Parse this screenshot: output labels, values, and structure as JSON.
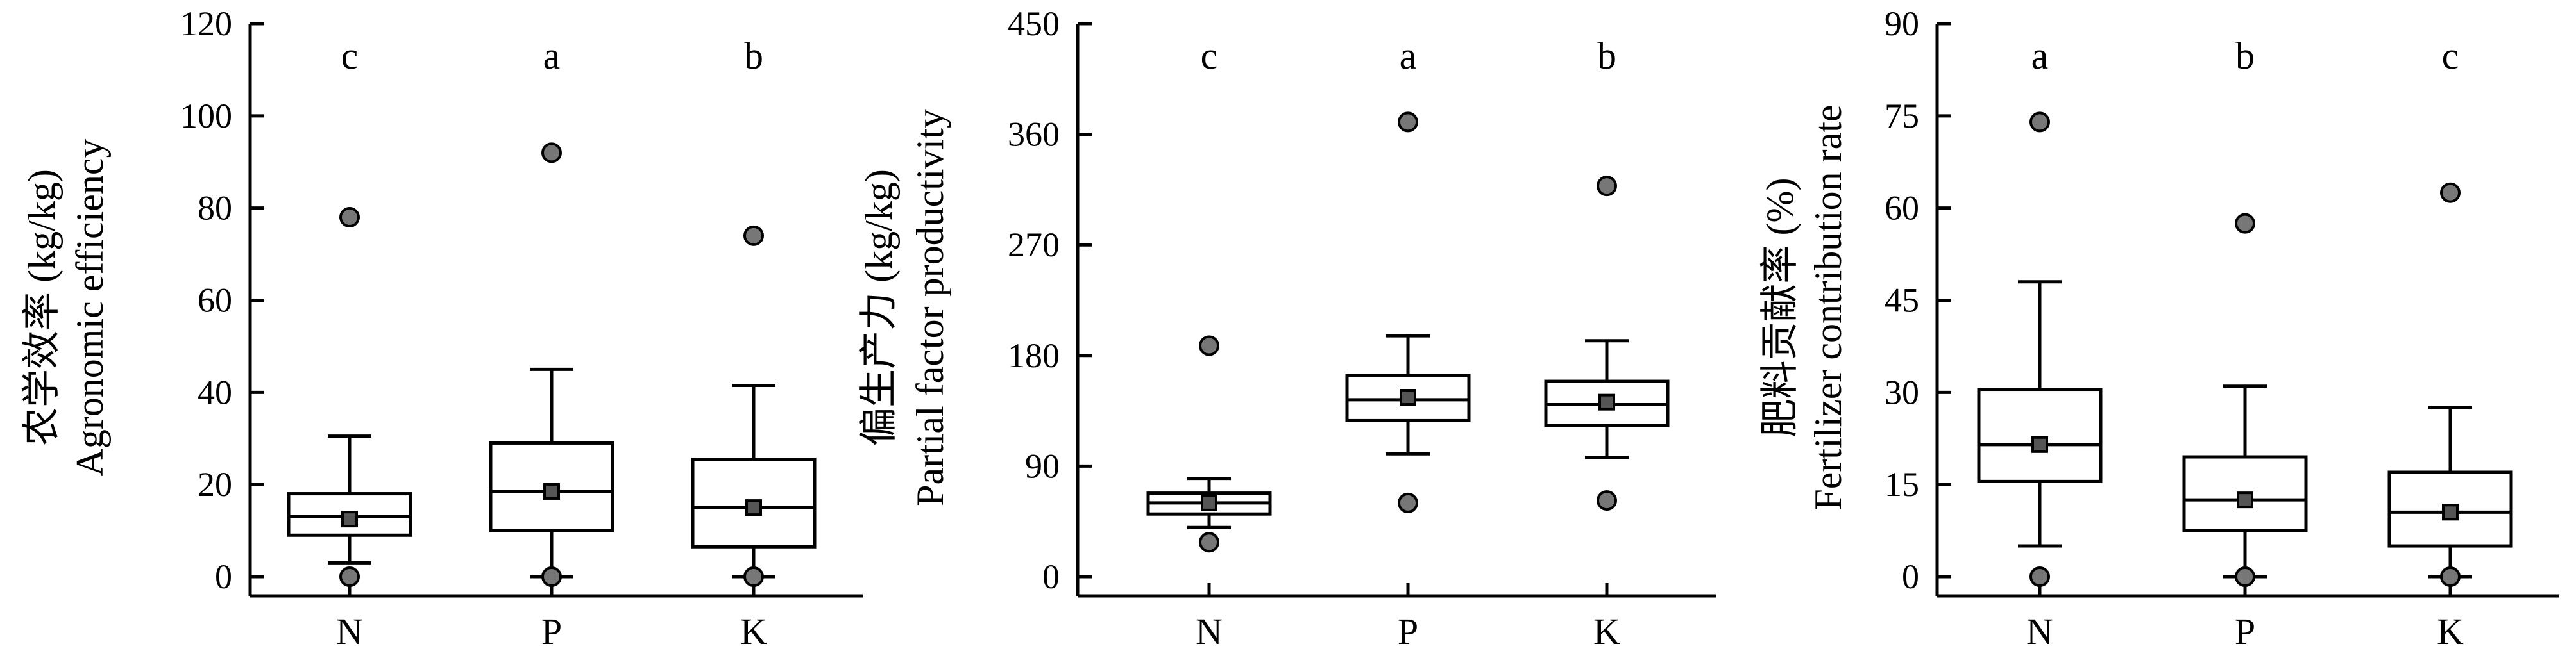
{
  "chart_data": [
    {
      "type": "box",
      "ylabel_lines": [
        "农学效率 (kg/kg)",
        "Agronomic efficiency"
      ],
      "ylim": [
        0,
        120
      ],
      "yticks": [
        0,
        20,
        40,
        60,
        80,
        100,
        120
      ],
      "categories": [
        "N",
        "P",
        "K"
      ],
      "significance": [
        "c",
        "a",
        "b"
      ],
      "boxes": [
        {
          "min": 3,
          "q1": 9,
          "median": 13,
          "q3": 18,
          "max": 30.5,
          "mean": 12.5,
          "outliers": [
            0,
            78
          ]
        },
        {
          "min": 0,
          "q1": 10,
          "median": 18.5,
          "q3": 29,
          "max": 45,
          "mean": 18.5,
          "outliers": [
            0,
            92
          ]
        },
        {
          "min": 0,
          "q1": 6.5,
          "median": 15,
          "q3": 25.5,
          "max": 41.5,
          "mean": 15,
          "outliers": [
            0,
            74
          ]
        }
      ]
    },
    {
      "type": "box",
      "ylabel_lines": [
        "偏生产力 (kg/kg)",
        "Partial factor productivity"
      ],
      "ylim": [
        0,
        450
      ],
      "yticks": [
        0,
        90,
        180,
        270,
        360,
        450
      ],
      "categories": [
        "N",
        "P",
        "K"
      ],
      "significance": [
        "c",
        "a",
        "b"
      ],
      "boxes": [
        {
          "min": 40,
          "q1": 51,
          "median": 60,
          "q3": 68,
          "max": 80,
          "mean": 60,
          "outliers": [
            28,
            188
          ]
        },
        {
          "min": 100,
          "q1": 127,
          "median": 144,
          "q3": 164,
          "max": 196,
          "mean": 146,
          "outliers": [
            60,
            370
          ]
        },
        {
          "min": 97,
          "q1": 123,
          "median": 140,
          "q3": 159,
          "max": 192,
          "mean": 142,
          "outliers": [
            62,
            318
          ]
        }
      ]
    },
    {
      "type": "box",
      "ylabel_lines": [
        "肥料贡献率 (%)",
        "Fertilizer contribution rate"
      ],
      "ylim": [
        0,
        90
      ],
      "yticks": [
        0,
        15,
        30,
        45,
        60,
        75,
        90
      ],
      "categories": [
        "N",
        "P",
        "K"
      ],
      "significance": [
        "a",
        "b",
        "c"
      ],
      "boxes": [
        {
          "min": 5,
          "q1": 15.5,
          "median": 21.5,
          "q3": 30.5,
          "max": 48,
          "mean": 21.5,
          "outliers": [
            0,
            74
          ]
        },
        {
          "min": 0,
          "q1": 7.5,
          "median": 12.5,
          "q3": 19.5,
          "max": 31,
          "mean": 12.5,
          "outliers": [
            0,
            57.5
          ]
        },
        {
          "min": 0,
          "q1": 5,
          "median": 10.5,
          "q3": 17,
          "max": 27.5,
          "mean": 10.5,
          "outliers": [
            0,
            62.5
          ]
        }
      ]
    }
  ]
}
